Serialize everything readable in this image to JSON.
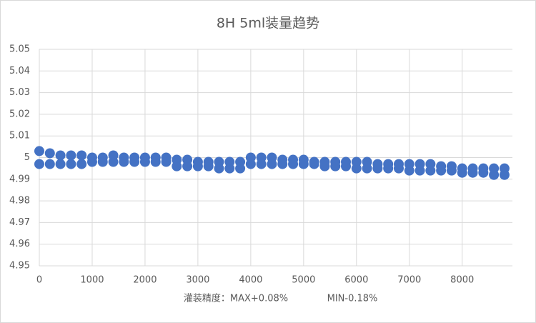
{
  "chart_data": {
    "type": "scatter",
    "title": "8H   5ml装量趋势",
    "annotations": [
      "灌装精度：MAX+0.08%",
      "MIN-0.18%"
    ],
    "xlim": [
      0,
      8950
    ],
    "xticks": [
      0,
      1000,
      2000,
      3000,
      4000,
      5000,
      6000,
      7000,
      8000
    ],
    "ylim": [
      4.95,
      5.05
    ],
    "yticks": [
      4.95,
      4.96,
      4.97,
      4.98,
      4.99,
      5,
      5.01,
      5.02,
      5.03,
      5.04,
      5.05
    ],
    "grid": true,
    "color": "#4472c4",
    "x": [
      0,
      200,
      400,
      600,
      800,
      1000,
      1200,
      1400,
      1600,
      1800,
      2000,
      2200,
      2400,
      2600,
      2800,
      3000,
      3200,
      3400,
      3600,
      3800,
      4000,
      4200,
      4400,
      4600,
      4800,
      5000,
      5200,
      5400,
      5600,
      5800,
      6000,
      6200,
      6400,
      6600,
      6800,
      7000,
      7200,
      7400,
      7600,
      7800,
      8000,
      8200,
      8400,
      8600,
      8800,
      0,
      200,
      400,
      600,
      800,
      1000,
      1200,
      1400,
      1600,
      1800,
      2000,
      2200,
      2400,
      2600,
      2800,
      3000,
      3200,
      3400,
      3600,
      3800,
      4000,
      4200,
      4400,
      4600,
      4800,
      5000,
      5200,
      5400,
      5600,
      5800,
      6000,
      6200,
      6400,
      6600,
      6800,
      7000,
      7200,
      7400,
      7600,
      7800,
      8000,
      8200,
      8400,
      8600,
      8800
    ],
    "y": [
      5.003,
      5.002,
      5.001,
      5.001,
      5.001,
      5.0,
      5.0,
      5.001,
      5.0,
      5.0,
      5.0,
      5.0,
      5.0,
      4.999,
      4.999,
      4.998,
      4.998,
      4.998,
      4.998,
      4.998,
      5.0,
      5.0,
      5.0,
      4.999,
      4.999,
      4.999,
      4.998,
      4.998,
      4.998,
      4.998,
      4.998,
      4.998,
      4.997,
      4.997,
      4.997,
      4.997,
      4.997,
      4.997,
      4.996,
      4.996,
      4.995,
      4.995,
      4.995,
      4.995,
      4.995,
      4.997,
      4.997,
      4.997,
      4.997,
      4.997,
      4.998,
      4.998,
      4.998,
      4.998,
      4.998,
      4.998,
      4.998,
      4.998,
      4.996,
      4.996,
      4.996,
      4.996,
      4.995,
      4.995,
      4.995,
      4.997,
      4.997,
      4.997,
      4.997,
      4.997,
      4.997,
      4.997,
      4.996,
      4.996,
      4.996,
      4.995,
      4.995,
      4.995,
      4.995,
      4.995,
      4.994,
      4.994,
      4.994,
      4.994,
      4.994,
      4.993,
      4.993,
      4.993,
      4.992,
      4.992
    ]
  }
}
